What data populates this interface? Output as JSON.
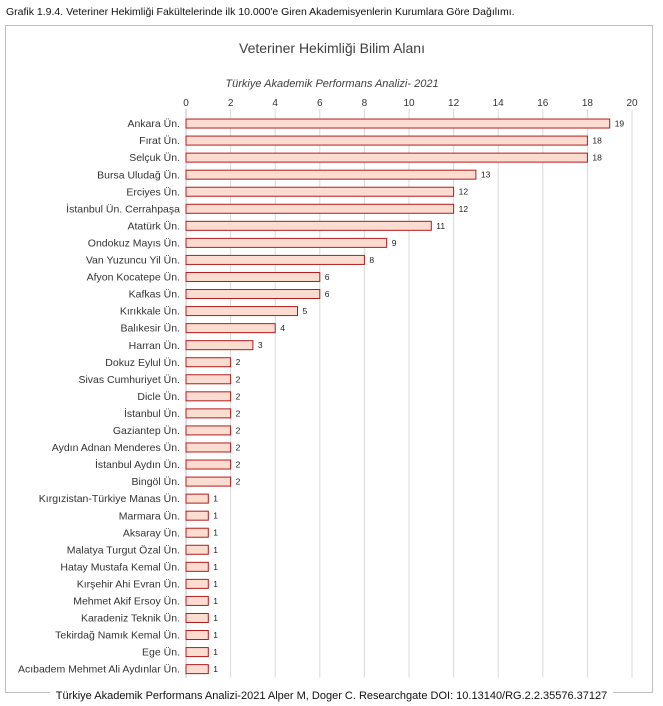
{
  "caption": "Grafik 1.9.4.  Veteriner Hekimliği  Fakültelerinde ilk 10.000'e Giren Akademisyenlerin Kurumlara Göre Dağılımı.",
  "footer": "Türkiye Akademik Performans Analizi-2021 Alper M, Doger C. Researchgate DOI: 10.13140/RG.2.2.35576.37127",
  "colors": {
    "bar_fill": "#fbdcd0",
    "bar_stroke": "#b31b1b",
    "grid": "#d9d9d9"
  },
  "chart_data": {
    "type": "bar",
    "orientation": "horizontal",
    "title": "Veteriner Hekimliği Bilim Alanı",
    "subtitle": "Türkiye Akademik Performans Analizi- 2021",
    "xlim": [
      0,
      20
    ],
    "xticks": [
      0,
      2,
      4,
      6,
      8,
      10,
      12,
      14,
      16,
      18,
      20
    ],
    "x_axis_position": "top",
    "grid": true,
    "categories": [
      "Ankara Ün.",
      "Fırat Ün.",
      "Selçuk Ün.",
      "Bursa Uludağ Ün.",
      "Erciyes Ün.",
      "İstanbul Ün. Cerrahpaşa",
      "Atatürk Ün.",
      "Ondokuz Mayıs Ün.",
      "Van Yuzuncu Yil Ün.",
      "Afyon Kocatepe Ün.",
      "Kafkas Ün.",
      "Kırıkkale Ün.",
      "Balıkesir Ün.",
      "Harran Ün.",
      "Dokuz Eylul Ün.",
      "Sivas Cumhuriyet Ün.",
      "Dicle Ün.",
      "İstanbul Ün.",
      "Gaziantep Ün.",
      "Aydın Adnan Menderes Ün.",
      "İstanbul Aydın Ün.",
      "Bingöl Ün.",
      "Kırgızistan-Türkiye Manas Ün.",
      "Marmara Ün.",
      "Aksaray Ün.",
      "Malatya Turgut Özal Ün.",
      "Hatay Mustafa Kemal Ün.",
      "Kırşehir Ahi Evran Ün.",
      "Mehmet Akif Ersoy Ün.",
      "Karadeniz Teknik Ün.",
      "Tekirdağ Namık Kemal Ün.",
      "Ege Ün.",
      "Acıbadem Mehmet Ali Aydınlar Ün."
    ],
    "values": [
      19,
      18,
      18,
      13,
      12,
      12,
      11,
      9,
      8,
      6,
      6,
      5,
      4,
      3,
      2,
      2,
      2,
      2,
      2,
      2,
      2,
      2,
      1,
      1,
      1,
      1,
      1,
      1,
      1,
      1,
      1,
      1,
      1
    ]
  }
}
